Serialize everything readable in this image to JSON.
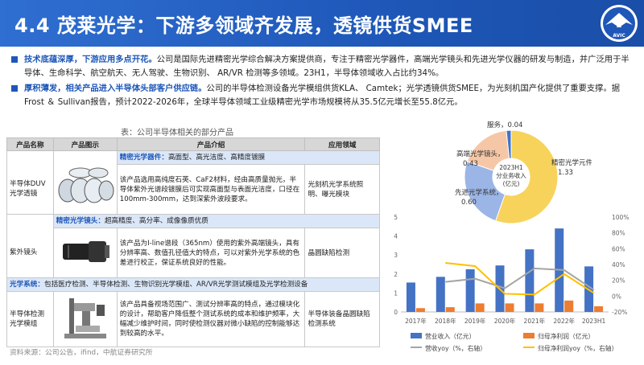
{
  "header": {
    "title": "4.4 茂莱光学：下游多领域齐发展，透镜供货SMEE",
    "logo_text": "AVIC"
  },
  "bullets": [
    {
      "highlight": "技术底蕴深厚，下游应用多点开花。",
      "text": "公司是国际先进精密光学综合解决方案提供商，专注于精密光学器件，高端光学镜头和先进光学仪器的研发与制造，并广泛用于半导体、生命科学、航空航天、无人驾驶、生物识别、 AR/VR 检测等多领域。23H1，半导体领域收入占比约34%。"
    },
    {
      "highlight": "厚积薄发，相关产品进入半导体头部客户供应链。",
      "text": "公司的半导体检测设备光学模组供货KLA、 Camtek；光学透镜供货SMEE，为光刻机国产化提供了重要支撑。据Frost ＆ Sullivan报告，预计2022-2026年，全球半导体领域工业级精密光学市场规模将从35.5亿元增长至55.8亿元。"
    }
  ],
  "table": {
    "caption": "表：公司半导体相关的部分产品",
    "headers": [
      "产品名称",
      "产品图示",
      "产品介绍",
      "应用领域"
    ],
    "sections": [
      {
        "category_head": "精密光学器件：",
        "category_desc": "高面型、高光洁度、高精度镀膜",
        "name": "半导体DUV光学透镜",
        "intro": "该产品选用高纯度石英、CaF2材料，经由高质量抛光，半导体紫外光谱段镀膜后可实现高面型与表面光洁度，口径在100mm-300mm，达到深紫外波段要求。",
        "application": "光刻机光学系统照明、曝光模块"
      },
      {
        "category_head": "精密光学镜头：",
        "category_desc": "超高精度、高分率、成像像质优质",
        "name": "紫外镜头",
        "intro": "该产品为I-line谱段（365nm）使用的紫外高端镜头，具有分辨率高、数值孔径值大的特点，可以对紫外光学系统的色差进行校正，保证系统良好的性能。",
        "application": "晶圆缺陷检测"
      },
      {
        "category_head": "光学系统：",
        "category_desc": "包括医疗检测、半导体检测、生物识别光学模组、AR/VR光学测试模组及光学检测设备",
        "name": "半导体检测光学模组",
        "intro": "该产品具备视场范围广、测试分辨率高的特点，通过模块化的设计，帮助客户降低整个测试系统的成本和维护频率，大幅减少维护时间，同时使检测仪器对微小缺陷的控制能够达到较高的水平。",
        "application": "半导体装备晶圆缺陷检测系统"
      }
    ]
  },
  "source": "资料来源：公司公告，ifind，中航证券研究所",
  "chart_data": [
    {
      "type": "pie",
      "center_label": [
        "2023H1",
        "分业务收入",
        "(亿元)"
      ],
      "slices": [
        {
          "name": "精密光学元件",
          "value": 1.33,
          "color": "#f7d35b"
        },
        {
          "name": "先进光学系统",
          "value": 0.6,
          "color": "#9bb5e6"
        },
        {
          "name": "高端光学镜头",
          "value": 0.43,
          "color": "#f6c7a6"
        },
        {
          "name": "服务",
          "value": 0.04,
          "color": "#4472c4"
        }
      ]
    },
    {
      "type": "bar",
      "categories": [
        "2017年",
        "2018年",
        "2019年",
        "2020年",
        "2021年",
        "2022年",
        "2023H1"
      ],
      "ylim": [
        0,
        5
      ],
      "y2lim": [
        -20,
        100
      ],
      "yticks": [
        0,
        1,
        2,
        3,
        4,
        5
      ],
      "y2ticks": [
        "100%",
        "80%",
        "60%",
        "40%",
        "20%",
        "0%",
        "-20%"
      ],
      "series": [
        {
          "name": "营业收入（亿元）",
          "kind": "bar",
          "color": "#4472c4",
          "values": [
            1.55,
            1.85,
            2.25,
            2.45,
            3.3,
            4.4,
            2.4
          ]
        },
        {
          "name": "归母净利润（亿元）",
          "kind": "bar",
          "color": "#ed7d31",
          "values": [
            0.2,
            0.25,
            0.45,
            0.45,
            0.45,
            0.6,
            0.3
          ]
        },
        {
          "name": "营收yoy（%，右轴）",
          "kind": "line",
          "color": "#a5a5a5",
          "values": [
            null,
            18,
            22,
            10,
            35,
            33,
            8
          ]
        },
        {
          "name": "归母净利润yoy（%，右轴）",
          "kind": "line",
          "color": "#ffc000",
          "values": [
            null,
            42,
            38,
            3,
            2,
            28,
            4
          ]
        }
      ]
    }
  ]
}
